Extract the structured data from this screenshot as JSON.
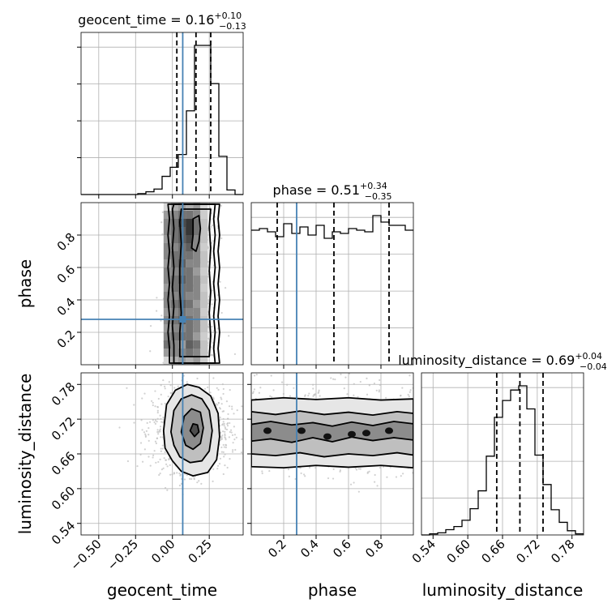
{
  "chart_data": {
    "type": "corner",
    "parameters": [
      "geocent_time",
      "phase",
      "luminosity_distance"
    ],
    "axis_labels": [
      "geocent_time",
      "phase",
      "luminosity_distance"
    ],
    "truths": {
      "geocent_time": 0.07,
      "phase": 0.28
    },
    "colors": {
      "truth": "#4682b4",
      "line": "#000000",
      "grid": "#b0b0b0",
      "scatter": "#bdbdbd"
    },
    "grid": true,
    "titles": [
      {
        "param": "geocent_time",
        "prefix": "geocent_time = ",
        "median": "0.16",
        "plus": "+0.10",
        "minus": "−0.13"
      },
      {
        "param": "phase",
        "prefix": "phase = ",
        "median": "0.51",
        "plus": "+0.34",
        "minus": "−0.35"
      },
      {
        "param": "luminosity_distance",
        "prefix": "luminosity_distance = ",
        "median": "0.69",
        "plus": "+0.04",
        "minus": "−0.04"
      }
    ],
    "ranges": {
      "geocent_time": [
        -0.62,
        0.48
      ],
      "phase": [
        0.0,
        1.0
      ],
      "luminosity_distance": [
        0.52,
        0.8
      ]
    },
    "ticks": {
      "geocent_time": {
        "values": [
          -0.5,
          -0.25,
          0.0,
          0.25
        ],
        "labels": [
          "−0.50",
          "−0.25",
          "0.00",
          "0.25"
        ]
      },
      "phase": {
        "values": [
          0.2,
          0.4,
          0.6,
          0.8
        ],
        "labels": [
          "0.2",
          "0.4",
          "0.6",
          "0.8"
        ]
      },
      "luminosity_distance": {
        "values": [
          0.54,
          0.6,
          0.66,
          0.72,
          0.78
        ],
        "labels": [
          "0.54",
          "0.60",
          "0.66",
          "0.72",
          "0.78"
        ]
      }
    },
    "marginals": [
      {
        "param": "geocent_time",
        "quantiles": [
          0.03,
          0.16,
          0.26
        ],
        "bin_edges": [
          -0.62,
          -0.565,
          -0.51,
          -0.455,
          -0.4,
          -0.345,
          -0.29,
          -0.235,
          -0.18,
          -0.125,
          -0.07,
          -0.015,
          0.04,
          0.095,
          0.15,
          0.205,
          0.26,
          0.315,
          0.37,
          0.425,
          0.48
        ],
        "counts": [
          0,
          0,
          0,
          0,
          0,
          0,
          0,
          1,
          3,
          6,
          20,
          30,
          44,
          92,
          164,
          164,
          122,
          42,
          5,
          0
        ]
      },
      {
        "param": "phase",
        "quantiles": [
          0.16,
          0.51,
          0.85
        ],
        "bin_edges": [
          0.0,
          0.05,
          0.1,
          0.15,
          0.2,
          0.25,
          0.3,
          0.35,
          0.4,
          0.45,
          0.5,
          0.55,
          0.6,
          0.65,
          0.7,
          0.75,
          0.8,
          0.85,
          0.9,
          0.95,
          1.0
        ],
        "counts": [
          83,
          84,
          82,
          79,
          87,
          81,
          85,
          80,
          86,
          78,
          82,
          81,
          84,
          83,
          82,
          92,
          88,
          86,
          86,
          83
        ]
      },
      {
        "param": "luminosity_distance",
        "quantiles": [
          0.65,
          0.69,
          0.73
        ],
        "bin_edges": [
          0.52,
          0.534,
          0.548,
          0.562,
          0.576,
          0.59,
          0.604,
          0.618,
          0.632,
          0.646,
          0.66,
          0.674,
          0.688,
          0.702,
          0.716,
          0.73,
          0.744,
          0.758,
          0.772,
          0.786,
          0.8
        ],
        "counts": [
          0,
          1,
          2,
          5,
          8,
          14,
          25,
          42,
          75,
          112,
          128,
          138,
          142,
          120,
          76,
          48,
          24,
          12,
          4,
          1
        ]
      }
    ],
    "pairs": [
      {
        "x": "geocent_time",
        "y": "phase",
        "cells": [
          [
            0.0,
            0.05,
            0.1,
            0.3,
            0.4,
            0.3,
            0.4,
            0.15
          ],
          [
            0.05,
            0.1,
            0.4,
            0.5,
            0.5,
            0.6,
            0.5,
            0.2
          ],
          [
            0.1,
            0.15,
            0.6,
            0.5,
            0.4,
            0.7,
            0.6,
            0.2
          ],
          [
            0.15,
            0.2,
            0.5,
            0.6,
            0.6,
            0.6,
            0.4,
            0.15
          ],
          [
            0.2,
            0.25,
            0.4,
            0.5,
            0.5,
            0.6,
            0.5,
            0.2
          ],
          [
            0.25,
            0.3,
            0.5,
            0.6,
            0.7,
            0.6,
            0.5,
            0.2
          ],
          [
            0.3,
            0.35,
            0.4,
            0.5,
            0.6,
            0.5,
            0.5,
            0.15
          ],
          [
            0.35,
            0.4,
            0.5,
            0.6,
            0.7,
            0.6,
            0.4,
            0.2
          ],
          [
            0.4,
            0.45,
            0.5,
            0.5,
            0.6,
            0.5,
            0.5,
            0.2
          ],
          [
            0.45,
            0.5,
            0.4,
            0.6,
            0.6,
            0.6,
            0.5,
            0.15
          ],
          [
            0.5,
            0.55,
            0.5,
            0.6,
            0.7,
            0.6,
            0.5,
            0.2
          ],
          [
            0.55,
            0.6,
            0.5,
            0.5,
            0.6,
            0.6,
            0.4,
            0.15
          ],
          [
            0.6,
            0.65,
            0.4,
            0.6,
            0.7,
            0.5,
            0.5,
            0.2
          ],
          [
            0.65,
            0.7,
            0.5,
            0.6,
            0.6,
            0.6,
            0.5,
            0.2
          ],
          [
            0.7,
            0.75,
            0.5,
            0.5,
            0.6,
            0.7,
            0.5,
            0.15
          ],
          [
            0.75,
            0.8,
            0.4,
            0.6,
            0.7,
            0.8,
            0.5,
            0.2
          ],
          [
            0.8,
            0.85,
            0.5,
            0.6,
            0.7,
            0.9,
            0.6,
            0.2
          ],
          [
            0.85,
            0.9,
            0.5,
            0.6,
            0.8,
            0.9,
            0.6,
            0.2
          ],
          [
            0.9,
            0.95,
            0.4,
            0.5,
            0.6,
            0.6,
            0.5,
            0.15
          ],
          [
            0.95,
            1.0,
            0.1,
            0.3,
            0.4,
            0.3,
            0.4,
            0.1
          ]
        ],
        "cell_x_edges": [
          -0.06,
          -0.01,
          0.04,
          0.09,
          0.14,
          0.19,
          0.24
        ],
        "contours": [
          [
            [
              -0.02,
              0.01
            ],
            [
              -0.02,
              0.1
            ],
            [
              -0.03,
              0.2
            ],
            [
              -0.02,
              0.3
            ],
            [
              -0.03,
              0.4
            ],
            [
              -0.02,
              0.5
            ],
            [
              -0.03,
              0.6
            ],
            [
              -0.02,
              0.7
            ],
            [
              -0.03,
              0.8
            ],
            [
              -0.02,
              0.9
            ],
            [
              -0.03,
              0.99
            ],
            [
              0.32,
              0.99
            ],
            [
              0.31,
              0.9
            ],
            [
              0.32,
              0.8
            ],
            [
              0.31,
              0.7
            ],
            [
              0.32,
              0.6
            ],
            [
              0.31,
              0.5
            ],
            [
              0.32,
              0.4
            ],
            [
              0.31,
              0.3
            ],
            [
              0.32,
              0.2
            ],
            [
              0.31,
              0.1
            ],
            [
              0.32,
              0.01
            ]
          ],
          [
            [
              0.01,
              0.01
            ],
            [
              0.01,
              0.12
            ],
            [
              0.0,
              0.24
            ],
            [
              0.01,
              0.36
            ],
            [
              0.0,
              0.48
            ],
            [
              0.01,
              0.6
            ],
            [
              0.0,
              0.72
            ],
            [
              0.01,
              0.84
            ],
            [
              0.0,
              0.96
            ],
            [
              0.01,
              0.99
            ],
            [
              0.29,
              0.99
            ],
            [
              0.28,
              0.9
            ],
            [
              0.29,
              0.8
            ],
            [
              0.28,
              0.7
            ],
            [
              0.29,
              0.6
            ],
            [
              0.28,
              0.5
            ],
            [
              0.29,
              0.4
            ],
            [
              0.28,
              0.3
            ],
            [
              0.29,
              0.2
            ],
            [
              0.28,
              0.1
            ],
            [
              0.29,
              0.01
            ]
          ],
          [
            [
              0.05,
              0.05
            ],
            [
              0.05,
              0.2
            ],
            [
              0.06,
              0.32
            ],
            [
              0.05,
              0.45
            ],
            [
              0.05,
              0.6
            ],
            [
              0.06,
              0.75
            ],
            [
              0.05,
              0.88
            ],
            [
              0.06,
              0.96
            ],
            [
              0.26,
              0.96
            ],
            [
              0.25,
              0.85
            ],
            [
              0.26,
              0.72
            ],
            [
              0.25,
              0.58
            ],
            [
              0.26,
              0.45
            ],
            [
              0.25,
              0.32
            ],
            [
              0.26,
              0.18
            ],
            [
              0.25,
              0.05
            ]
          ],
          [
            [
              0.13,
              0.72
            ],
            [
              0.14,
              0.8
            ],
            [
              0.14,
              0.9
            ],
            [
              0.18,
              0.92
            ],
            [
              0.19,
              0.84
            ],
            [
              0.18,
              0.76
            ],
            [
              0.16,
              0.7
            ]
          ]
        ],
        "scatter_box": [
          -0.2,
          0.45,
          0.0,
          1.0
        ]
      },
      {
        "x": "geocent_time",
        "y": "luminosity_distance",
        "contours": [
          [
            [
              -0.06,
              0.7
            ],
            [
              -0.04,
              0.745
            ],
            [
              0.02,
              0.77
            ],
            [
              0.1,
              0.78
            ],
            [
              0.18,
              0.775
            ],
            [
              0.26,
              0.76
            ],
            [
              0.31,
              0.73
            ],
            [
              0.32,
              0.69
            ],
            [
              0.3,
              0.65
            ],
            [
              0.24,
              0.628
            ],
            [
              0.14,
              0.622
            ],
            [
              0.06,
              0.63
            ],
            [
              0.0,
              0.648
            ],
            [
              -0.05,
              0.67
            ]
          ],
          [
            [
              -0.01,
              0.698
            ],
            [
              0.01,
              0.735
            ],
            [
              0.06,
              0.755
            ],
            [
              0.13,
              0.762
            ],
            [
              0.2,
              0.755
            ],
            [
              0.25,
              0.735
            ],
            [
              0.27,
              0.7
            ],
            [
              0.25,
              0.665
            ],
            [
              0.2,
              0.648
            ],
            [
              0.12,
              0.645
            ],
            [
              0.05,
              0.655
            ],
            [
              0.01,
              0.675
            ]
          ],
          [
            [
              0.06,
              0.698
            ],
            [
              0.08,
              0.725
            ],
            [
              0.13,
              0.738
            ],
            [
              0.19,
              0.732
            ],
            [
              0.21,
              0.705
            ],
            [
              0.19,
              0.678
            ],
            [
              0.14,
              0.668
            ],
            [
              0.09,
              0.675
            ]
          ],
          [
            [
              0.12,
              0.7
            ],
            [
              0.14,
              0.712
            ],
            [
              0.17,
              0.71
            ],
            [
              0.18,
              0.698
            ],
            [
              0.15,
              0.69
            ]
          ]
        ],
        "scatter_center": [
          0.13,
          0.7
        ],
        "scatter_spread": [
          0.13,
          0.035
        ]
      },
      {
        "x": "phase",
        "y": "luminosity_distance",
        "contours": [
          [
            [
              0.0,
              0.638
            ],
            [
              0.2,
              0.636
            ],
            [
              0.4,
              0.64
            ],
            [
              0.6,
              0.637
            ],
            [
              0.8,
              0.64
            ],
            [
              1.0,
              0.636
            ],
            [
              1.0,
              0.755
            ],
            [
              0.8,
              0.753
            ],
            [
              0.6,
              0.757
            ],
            [
              0.4,
              0.754
            ],
            [
              0.2,
              0.757
            ],
            [
              0.0,
              0.753
            ]
          ],
          [
            [
              0.0,
              0.66
            ],
            [
              0.15,
              0.657
            ],
            [
              0.3,
              0.662
            ],
            [
              0.45,
              0.655
            ],
            [
              0.6,
              0.66
            ],
            [
              0.75,
              0.657
            ],
            [
              0.9,
              0.662
            ],
            [
              1.0,
              0.658
            ],
            [
              1.0,
              0.73
            ],
            [
              0.9,
              0.733
            ],
            [
              0.75,
              0.727
            ],
            [
              0.6,
              0.732
            ],
            [
              0.45,
              0.728
            ],
            [
              0.3,
              0.734
            ],
            [
              0.15,
              0.728
            ],
            [
              0.0,
              0.733
            ]
          ],
          [
            [
              0.0,
              0.682
            ],
            [
              0.12,
              0.686
            ],
            [
              0.25,
              0.68
            ],
            [
              0.38,
              0.688
            ],
            [
              0.5,
              0.681
            ],
            [
              0.62,
              0.689
            ],
            [
              0.75,
              0.683
            ],
            [
              0.88,
              0.688
            ],
            [
              1.0,
              0.684
            ],
            [
              1.0,
              0.712
            ],
            [
              0.88,
              0.716
            ],
            [
              0.75,
              0.709
            ],
            [
              0.62,
              0.715
            ],
            [
              0.5,
              0.708
            ],
            [
              0.38,
              0.714
            ],
            [
              0.25,
              0.71
            ],
            [
              0.12,
              0.716
            ],
            [
              0.0,
              0.711
            ]
          ]
        ],
        "blobs": [
          [
            0.1,
            0.7
          ],
          [
            0.31,
            0.7
          ],
          [
            0.47,
            0.69
          ],
          [
            0.62,
            0.694
          ],
          [
            0.71,
            0.696
          ],
          [
            0.85,
            0.7
          ]
        ],
        "scatter_center": [
          0.5,
          0.7
        ],
        "scatter_spread": [
          0.5,
          0.035
        ]
      }
    ]
  }
}
